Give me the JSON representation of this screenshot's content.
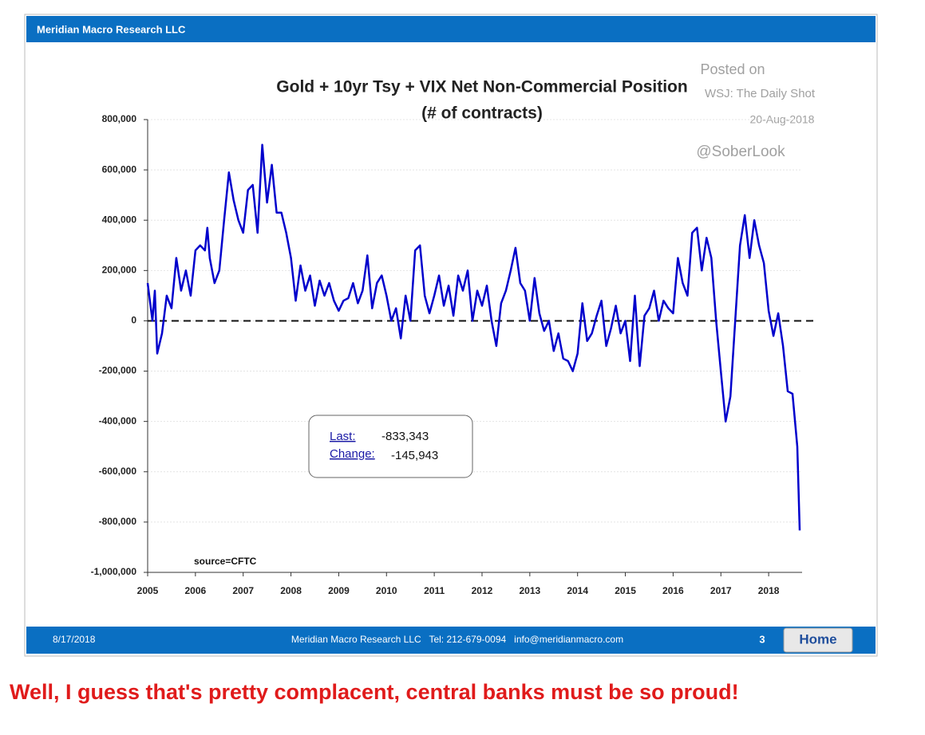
{
  "header": {
    "title": "Meridian Macro Research LLC"
  },
  "footer": {
    "date": "8/17/2018",
    "contact": "Meridian Macro Research LLC   Tel: 212-679-0094   info@meridianmacro.com",
    "page": "3",
    "button": "Home"
  },
  "caption": "Well, I guess that's pretty complacent, central banks must be so proud!",
  "chart_data": {
    "type": "line",
    "title": "Gold + 10yr Tsy + VIX  Net Non-Commercial Position",
    "subtitle": "(# of contracts)",
    "annotations": [
      "Posted on",
      "WSJ: The Daily Shot",
      "20-Aug-2018",
      "@SoberLook",
      "source=CFTC"
    ],
    "info_box": {
      "last_label": "Last:",
      "last_value": "-833,343",
      "change_label": "Change:",
      "change_value": "-145,943"
    },
    "xlim": [
      2005,
      2018.7
    ],
    "xticks": [
      2005,
      2006,
      2007,
      2008,
      2009,
      2010,
      2011,
      2012,
      2013,
      2014,
      2015,
      2016,
      2017,
      2018
    ],
    "ylim": [
      -1000000,
      800000
    ],
    "yticks": [
      {
        "value": -1000000,
        "label": "-1,000,000"
      },
      {
        "value": -800000,
        "label": "-800,000"
      },
      {
        "value": -600000,
        "label": "-600,000"
      },
      {
        "value": -400000,
        "label": "-400,000"
      },
      {
        "value": -200000,
        "label": "-200,000"
      },
      0,
      {
        "value": 200000,
        "label": "200,000"
      },
      {
        "value": 400000,
        "label": "400,000"
      },
      {
        "value": 600000,
        "label": "600,000"
      },
      {
        "value": 800000,
        "label": "800,000"
      }
    ],
    "grid": true,
    "reference_line": 0,
    "series": [
      {
        "name": "Net Non-Commercial Position",
        "color": "#0000cc",
        "x": [
          2005.0,
          2005.1,
          2005.15,
          2005.2,
          2005.3,
          2005.4,
          2005.5,
          2005.6,
          2005.7,
          2005.8,
          2005.9,
          2006.0,
          2006.1,
          2006.2,
          2006.25,
          2006.3,
          2006.4,
          2006.5,
          2006.6,
          2006.7,
          2006.8,
          2006.9,
          2007.0,
          2007.1,
          2007.2,
          2007.3,
          2007.4,
          2007.5,
          2007.6,
          2007.7,
          2007.8,
          2007.9,
          2008.0,
          2008.1,
          2008.2,
          2008.3,
          2008.4,
          2008.5,
          2008.6,
          2008.7,
          2008.8,
          2008.9,
          2009.0,
          2009.1,
          2009.2,
          2009.3,
          2009.4,
          2009.5,
          2009.6,
          2009.7,
          2009.8,
          2009.9,
          2010.0,
          2010.1,
          2010.2,
          2010.3,
          2010.4,
          2010.5,
          2010.6,
          2010.7,
          2010.8,
          2010.9,
          2011.0,
          2011.1,
          2011.2,
          2011.3,
          2011.4,
          2011.5,
          2011.6,
          2011.7,
          2011.8,
          2011.9,
          2012.0,
          2012.1,
          2012.2,
          2012.3,
          2012.4,
          2012.5,
          2012.6,
          2012.7,
          2012.8,
          2012.9,
          2013.0,
          2013.1,
          2013.2,
          2013.3,
          2013.4,
          2013.5,
          2013.6,
          2013.7,
          2013.8,
          2013.9,
          2014.0,
          2014.1,
          2014.2,
          2014.3,
          2014.4,
          2014.5,
          2014.6,
          2014.7,
          2014.8,
          2014.9,
          2015.0,
          2015.1,
          2015.2,
          2015.3,
          2015.4,
          2015.5,
          2015.6,
          2015.7,
          2015.8,
          2015.9,
          2016.0,
          2016.1,
          2016.2,
          2016.3,
          2016.4,
          2016.5,
          2016.6,
          2016.7,
          2016.8,
          2016.9,
          2017.0,
          2017.1,
          2017.2,
          2017.3,
          2017.4,
          2017.5,
          2017.6,
          2017.7,
          2017.8,
          2017.9,
          2018.0,
          2018.1,
          2018.2,
          2018.3,
          2018.4,
          2018.5,
          2018.6,
          2018.65
        ],
        "values": [
          150000,
          0,
          120000,
          -130000,
          -50000,
          100000,
          50000,
          250000,
          120000,
          200000,
          100000,
          280000,
          300000,
          280000,
          370000,
          250000,
          150000,
          200000,
          400000,
          590000,
          480000,
          400000,
          350000,
          520000,
          540000,
          350000,
          700000,
          470000,
          620000,
          430000,
          430000,
          350000,
          250000,
          80000,
          220000,
          120000,
          180000,
          60000,
          160000,
          100000,
          150000,
          80000,
          40000,
          80000,
          90000,
          150000,
          70000,
          120000,
          260000,
          50000,
          150000,
          180000,
          100000,
          0,
          50000,
          -70000,
          100000,
          0,
          280000,
          300000,
          100000,
          30000,
          100000,
          180000,
          60000,
          140000,
          20000,
          180000,
          120000,
          200000,
          0,
          120000,
          60000,
          140000,
          0,
          -100000,
          70000,
          120000,
          200000,
          290000,
          150000,
          120000,
          0,
          170000,
          30000,
          -40000,
          0,
          -120000,
          -50000,
          -150000,
          -160000,
          -200000,
          -130000,
          70000,
          -80000,
          -50000,
          20000,
          80000,
          -100000,
          -30000,
          60000,
          -50000,
          0,
          -160000,
          100000,
          -180000,
          20000,
          50000,
          120000,
          0,
          80000,
          50000,
          30000,
          250000,
          150000,
          100000,
          350000,
          370000,
          200000,
          330000,
          250000,
          0,
          -200000,
          -400000,
          -300000,
          0,
          300000,
          420000,
          250000,
          400000,
          300000,
          230000,
          40000,
          -60000,
          30000,
          -100000,
          -280000,
          -290000,
          -500000,
          -833343
        ]
      }
    ]
  }
}
